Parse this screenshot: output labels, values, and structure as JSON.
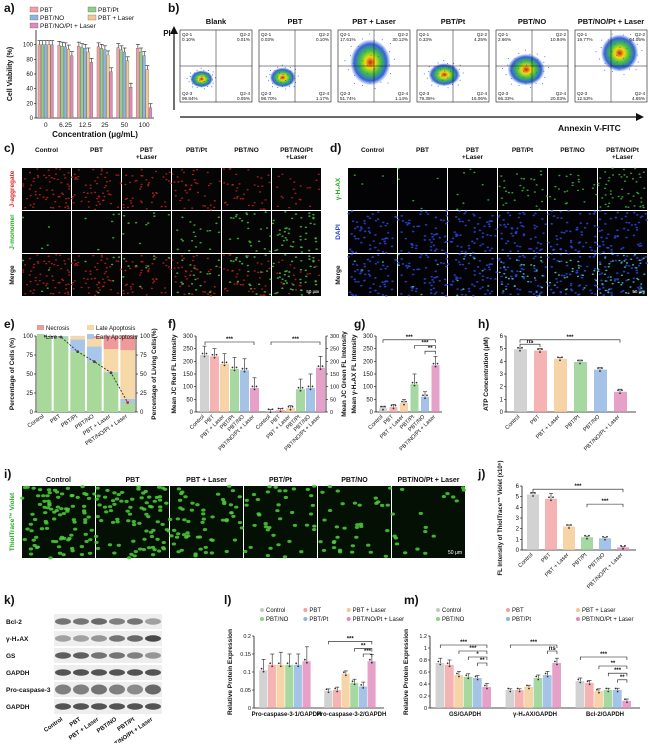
{
  "panels": {
    "a": "a)",
    "b": "b)",
    "c": "c)",
    "d": "d)",
    "e": "e)",
    "f": "f)",
    "g": "g)",
    "h": "h)",
    "i": "i)",
    "j": "j)",
    "k": "k)",
    "l": "l)",
    "m": "m)"
  },
  "treatments6": [
    "Control",
    "PBT",
    "PBT + Laser",
    "PBT/Pt",
    "PBT/NO",
    "PBT/NO/Pt + Laser"
  ],
  "treatments6_short": [
    "Control",
    "PBT",
    "PBT\n+Laser",
    "PBT/Pt",
    "PBT/NO",
    "PBT/NO/Pt\n+Laser"
  ],
  "sig": {
    "three": "***",
    "two": "**",
    "one": "*",
    "ns": "ns"
  },
  "colors": {
    "ctrl": "#c7c7c7",
    "pbt": "#f2a0a0",
    "laser": "#f5c892",
    "pt": "#8fcf8a",
    "no": "#8fb4e0",
    "all": "#e08aba",
    "live": "#a8d89a",
    "necrosis": "#f0999a",
    "late": "#f7d9a8",
    "early": "#a8c6ea"
  },
  "flow": {
    "xlabel": "Annexin V-FITC",
    "ylabel": "PI",
    "groups": [
      {
        "name": "Blank",
        "q1": "Q2-1\n0.10%",
        "q2": "Q2-2\n0.01%",
        "q3": "Q2-3\n99.84%",
        "q4": "Q2-4\n0.05%"
      },
      {
        "name": "PBT",
        "q1": "Q2-1\n0.03%",
        "q2": "Q2-2\n0.10%",
        "q3": "Q2-3\n98.70%",
        "q4": "Q2-4\n1.17%"
      },
      {
        "name": "PBT + Laser",
        "q1": "Q2-1\n17.61%",
        "q2": "Q2-2\n30.12%",
        "q3": "Q2-3\n51.74%",
        "q4": "Q2-4\n1.14%"
      },
      {
        "name": "PBT/Pt",
        "q1": "Q2-1\n0.33%",
        "q2": "Q2-2\n4.25%",
        "q3": "Q2-3\n79.35%",
        "q4": "Q2-4\n16.06%"
      },
      {
        "name": "PBT/NO",
        "q1": "Q2-1\n2.66%",
        "q2": "Q2-2\n10.94%",
        "q3": "Q2-3\n66.33%",
        "q4": "Q2-4\n20.03%"
      },
      {
        "name": "PBT/NO/Pt + Laser",
        "q1": "Q2-1\n19.77%",
        "q2": "Q2-2\n64.05%",
        "q3": "Q2-3\n12.53%",
        "q4": "Q2-4\n4.65%"
      }
    ]
  },
  "micro_c": {
    "rows": [
      "J-aggregate",
      "J-monomer",
      "Merge"
    ],
    "scale": "50 μm"
  },
  "micro_d": {
    "rows": [
      "γ-H₂AX",
      "DAPI",
      "Merge"
    ],
    "scale": "50 μm"
  },
  "micro_i": {
    "row": "ThiolTrace™ Violet",
    "scale": "50 μm"
  },
  "western": {
    "bands": [
      "Bcl-2",
      "γ-H₂AX",
      "GS",
      "GAPDH",
      "Pro-caspase-3",
      "GAPDH"
    ],
    "lanes": [
      "Control",
      "PBT",
      "PBT + Laser",
      "PBT/NO",
      "PBT/Pt",
      "PBT/NO/Pt + Laser"
    ]
  },
  "chart_data": [
    {
      "panel": "a",
      "type": "bar",
      "xlabel": "Concentration (μg/mL)",
      "ylabel": "Cell Viability (%)",
      "categories": [
        "0",
        "6.25",
        "12.5",
        "25",
        "50",
        "100"
      ],
      "ylim": [
        0,
        120
      ],
      "yticks": [
        0,
        20,
        40,
        60,
        80,
        100
      ],
      "series": [
        {
          "name": "PBT",
          "values": [
            100,
            99,
            98,
            97,
            96,
            95
          ]
        },
        {
          "name": "PBT/Pt",
          "values": [
            100,
            98,
            96,
            95,
            93,
            90
          ]
        },
        {
          "name": "PBT/NO",
          "values": [
            100,
            97,
            95,
            93,
            90,
            85
          ]
        },
        {
          "name": "PBT + Laser",
          "values": [
            100,
            94,
            90,
            86,
            78,
            66
          ]
        },
        {
          "name": "PBT/NO/Pt + Laser",
          "values": [
            100,
            85,
            76,
            63,
            42,
            14
          ]
        }
      ]
    },
    {
      "panel": "e",
      "type": "bar",
      "ylabel": "Percentage of Cells (%)",
      "ylabel2": "Percentage of Living Cells(%)",
      "categories": [
        "Control",
        "PBT",
        "PBT/Pt",
        "PBT/NO",
        "PBT + Laser",
        "PBT/NO/Pt + Laser"
      ],
      "ylim": [
        0,
        100
      ],
      "yticks": [
        0,
        25,
        50,
        75,
        100
      ],
      "series": [
        {
          "name": "Live",
          "values": [
            99.8,
            98.7,
            79.4,
            66.3,
            51.7,
            12.5
          ]
        },
        {
          "name": "Early Apoptosis",
          "values": [
            0.1,
            1.2,
            16.1,
            20.0,
            1.1,
            4.7
          ]
        },
        {
          "name": "Late Apoptosis",
          "values": [
            0.0,
            0.1,
            4.3,
            10.9,
            30.1,
            64.1
          ]
        },
        {
          "name": "Necrosis",
          "values": [
            0.1,
            0.0,
            0.3,
            2.7,
            17.6,
            19.8
          ]
        }
      ],
      "line": [
        99.8,
        98.7,
        79.4,
        66.3,
        51.7,
        12.5
      ]
    },
    {
      "panel": "f",
      "type": "bar",
      "ylabel": "Mean JC Red FL Intensity",
      "ylabel2": "Mean JC Green FL Intensity",
      "categories": [
        "Control",
        "PBT",
        "PBT + Laser",
        "PBT/Pt",
        "PBT/NO",
        "PBT/NO/Pt + Laser"
      ],
      "ylim": [
        0,
        300
      ],
      "yticks": [
        0,
        50,
        100,
        150,
        200,
        250,
        300
      ],
      "series": [
        {
          "name": "JC Red",
          "values": [
            225,
            220,
            190,
            170,
            165,
            95
          ],
          "err": [
            35,
            30,
            40,
            45,
            45,
            40
          ]
        },
        {
          "name": "JC Green",
          "values": [
            5,
            8,
            15,
            90,
            95,
            175
          ],
          "err": [
            5,
            6,
            10,
            40,
            55,
            45
          ]
        }
      ]
    },
    {
      "panel": "g",
      "type": "bar",
      "ylabel": "Mean γ-H₂AX FL Intensity",
      "categories": [
        "Control",
        "PBT",
        "PBT + Laser",
        "PBT/Pt",
        "PBT/NO",
        "PBT/NO/Pt + Laser"
      ],
      "ylim": [
        0,
        300
      ],
      "yticks": [
        0,
        50,
        100,
        150,
        200,
        250,
        300
      ],
      "series": [
        {
          "name": "γ-H₂AX",
          "values": [
            15,
            20,
            35,
            110,
            60,
            185
          ],
          "err": [
            8,
            10,
            15,
            40,
            20,
            35
          ]
        }
      ]
    },
    {
      "panel": "h",
      "type": "bar",
      "ylabel": "ATP Concentration (μM)",
      "categories": [
        "Control",
        "PBT",
        "PBT + Laser",
        "PBT/Pt",
        "PBT/NO",
        "PBT/NO/Pt + Laser"
      ],
      "ylim": [
        0,
        6
      ],
      "yticks": [
        0,
        1,
        2,
        3,
        4,
        5,
        6
      ],
      "series": [
        {
          "name": "ATP",
          "values": [
            4.95,
            4.85,
            4.2,
            3.95,
            3.35,
            1.6
          ],
          "err": [
            0.1,
            0.15,
            0.1,
            0.15,
            0.15,
            0.2
          ]
        }
      ]
    },
    {
      "panel": "j",
      "type": "bar",
      "ylabel": "FL Intensity of ThiolTrace™ Violet (x10⁵)",
      "categories": [
        "Control",
        "PBT",
        "PBT + Laser",
        "PBT/Pt",
        "PBT/NO",
        "PBT/NO/Pt + Laser"
      ],
      "ylim": [
        0,
        6
      ],
      "yticks": [
        0,
        1,
        2,
        3,
        4,
        5,
        6
      ],
      "series": [
        {
          "name": "ThiolTrace",
          "values": [
            5.2,
            4.8,
            2.2,
            1.2,
            1.1,
            0.25
          ],
          "err": [
            0.2,
            0.5,
            0.15,
            0.1,
            0.1,
            0.05
          ]
        }
      ]
    },
    {
      "panel": "l",
      "type": "bar",
      "ylabel": "Relative Protein Expression",
      "categories": [
        "Pro-caspase-3-1/GAPDH",
        "Pro-caspase-3-2/GAPDH"
      ],
      "ylim": [
        0,
        0.2
      ],
      "yticks": [
        0,
        0.05,
        0.1,
        0.15,
        0.2
      ],
      "series": [
        {
          "name": "Control",
          "values": [
            0.105,
            0.048
          ],
          "err": [
            0.03,
            0.005
          ]
        },
        {
          "name": "PBT",
          "values": [
            0.12,
            0.05
          ],
          "err": [
            0.03,
            0.008
          ]
        },
        {
          "name": "PBT + Laser",
          "values": [
            0.12,
            0.095
          ],
          "err": [
            0.035,
            0.008
          ]
        },
        {
          "name": "PBT/NO",
          "values": [
            0.12,
            0.07
          ],
          "err": [
            0.03,
            0.01
          ]
        },
        {
          "name": "PBT/Pt",
          "values": [
            0.12,
            0.06
          ],
          "err": [
            0.03,
            0.012
          ]
        },
        {
          "name": "PBT/NO/Pt + Laser",
          "values": [
            0.13,
            0.13
          ],
          "err": [
            0.04,
            0.018
          ]
        }
      ]
    },
    {
      "panel": "m",
      "type": "bar",
      "ylabel": "Relative Protein Expression",
      "categories": [
        "GS/GAPDH",
        "γ-H₂AX/GAPDH",
        "Bcl-2/GAPDH"
      ],
      "ylim": [
        0,
        1.2
      ],
      "yticks": [
        0,
        0.2,
        0.4,
        0.6,
        0.8,
        1.0,
        1.2
      ],
      "series": [
        {
          "name": "Control",
          "values": [
            0.75,
            0.3,
            0.45
          ],
          "err": [
            0.08,
            0.02,
            0.05
          ]
        },
        {
          "name": "PBT",
          "values": [
            0.72,
            0.3,
            0.42
          ],
          "err": [
            0.08,
            0.02,
            0.04
          ]
        },
        {
          "name": "PBT + Laser",
          "values": [
            0.55,
            0.35,
            0.28
          ],
          "err": [
            0.06,
            0.03,
            0.04
          ]
        },
        {
          "name": "PBT/NO",
          "values": [
            0.52,
            0.5,
            0.3
          ],
          "err": [
            0.05,
            0.05,
            0.03
          ]
        },
        {
          "name": "PBT/Pt",
          "values": [
            0.5,
            0.55,
            0.3
          ],
          "err": [
            0.04,
            0.06,
            0.03
          ]
        },
        {
          "name": "PBT/NO/Pt + Laser",
          "values": [
            0.35,
            0.75,
            0.12
          ],
          "err": [
            0.06,
            0.08,
            0.03
          ]
        }
      ]
    }
  ]
}
